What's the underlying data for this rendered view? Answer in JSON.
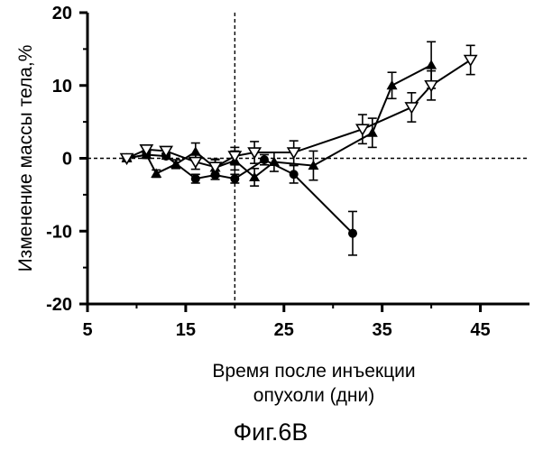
{
  "chart_data": {
    "type": "scatter",
    "xlabel": [
      "Время после инъекции",
      "опухоли (дни)"
    ],
    "ylabel": "Изменение массы тела,%",
    "xlim": [
      5,
      50
    ],
    "ylim": [
      -20,
      20
    ],
    "x_ticks": [
      5,
      15,
      25,
      35,
      45
    ],
    "y_ticks": [
      -20,
      -10,
      0,
      10,
      20
    ],
    "x_tick_labels": [
      "5",
      "15",
      "25",
      "35",
      "45"
    ],
    "y_tick_labels": [
      "-20",
      "-10",
      "0",
      "10",
      "20"
    ],
    "reference_lines": {
      "x": 20,
      "y": 0,
      "style": "dashed"
    },
    "grid": false,
    "series": [
      {
        "marker": "circle-filled",
        "color": "#000000",
        "x": [
          9,
          11,
          13,
          16,
          18,
          20,
          23,
          26,
          32
        ],
        "y": [
          0,
          0.5,
          0.3,
          -2.8,
          -2.3,
          -2.8,
          -0.2,
          -2.2,
          -10.3
        ],
        "err": [
          0.3,
          0.5,
          0.4,
          0.6,
          0.6,
          0.6,
          0.7,
          1.2,
          3
        ]
      },
      {
        "marker": "triangle-up-filled",
        "color": "#000000",
        "x": [
          9,
          11,
          12,
          14,
          16,
          18,
          20,
          22,
          24,
          28,
          34,
          36,
          40
        ],
        "y": [
          0,
          0.5,
          -2.1,
          -0.8,
          0.9,
          -1.3,
          -0.3,
          -2.6,
          -0.5,
          -1,
          3.5,
          10,
          12.8
        ],
        "err": [
          0.3,
          0.5,
          0.5,
          0.6,
          1.2,
          1.2,
          1.3,
          1.2,
          1.3,
          2,
          2,
          1.8,
          3.2
        ]
      },
      {
        "marker": "triangle-down-open",
        "color": "#000000",
        "x": [
          9,
          11,
          13,
          16,
          18,
          20,
          22,
          26,
          33,
          38,
          40,
          44
        ],
        "y": [
          0,
          1.2,
          1,
          -0.5,
          -1.2,
          0.3,
          0.8,
          0.8,
          4,
          7,
          10,
          13.5
        ],
        "err": [
          0.3,
          0.4,
          0.5,
          1,
          1,
          1.2,
          1.5,
          1.6,
          2,
          2,
          2,
          2
        ]
      }
    ]
  },
  "caption": "Фиг.6B"
}
